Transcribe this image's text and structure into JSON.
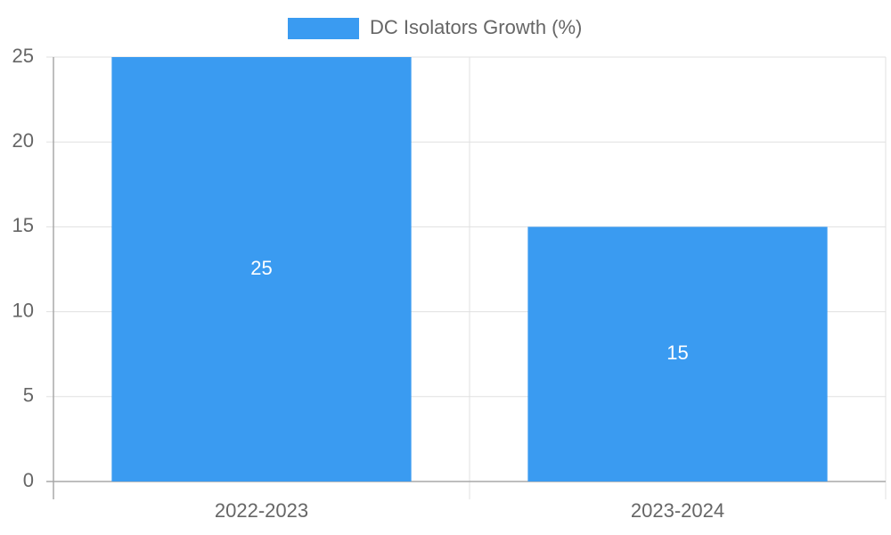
{
  "chart_data": {
    "type": "bar",
    "title": "",
    "xlabel": "",
    "ylabel": "",
    "categories": [
      "2022-2023",
      "2023-2024"
    ],
    "series": [
      {
        "name": "DC Isolators Growth (%)",
        "values": [
          25,
          15
        ],
        "color": "#3a9bf1"
      }
    ],
    "data_labels": [
      "25",
      "15"
    ],
    "ylim": [
      0,
      25
    ],
    "yticks": [
      0,
      5,
      10,
      15,
      20,
      25
    ],
    "grid": true,
    "legend_position": "top-center"
  },
  "colors": {
    "grid": "#e0e0e0",
    "axis": "#a8a8a8",
    "text": "#666666",
    "label": "#ffffff"
  }
}
